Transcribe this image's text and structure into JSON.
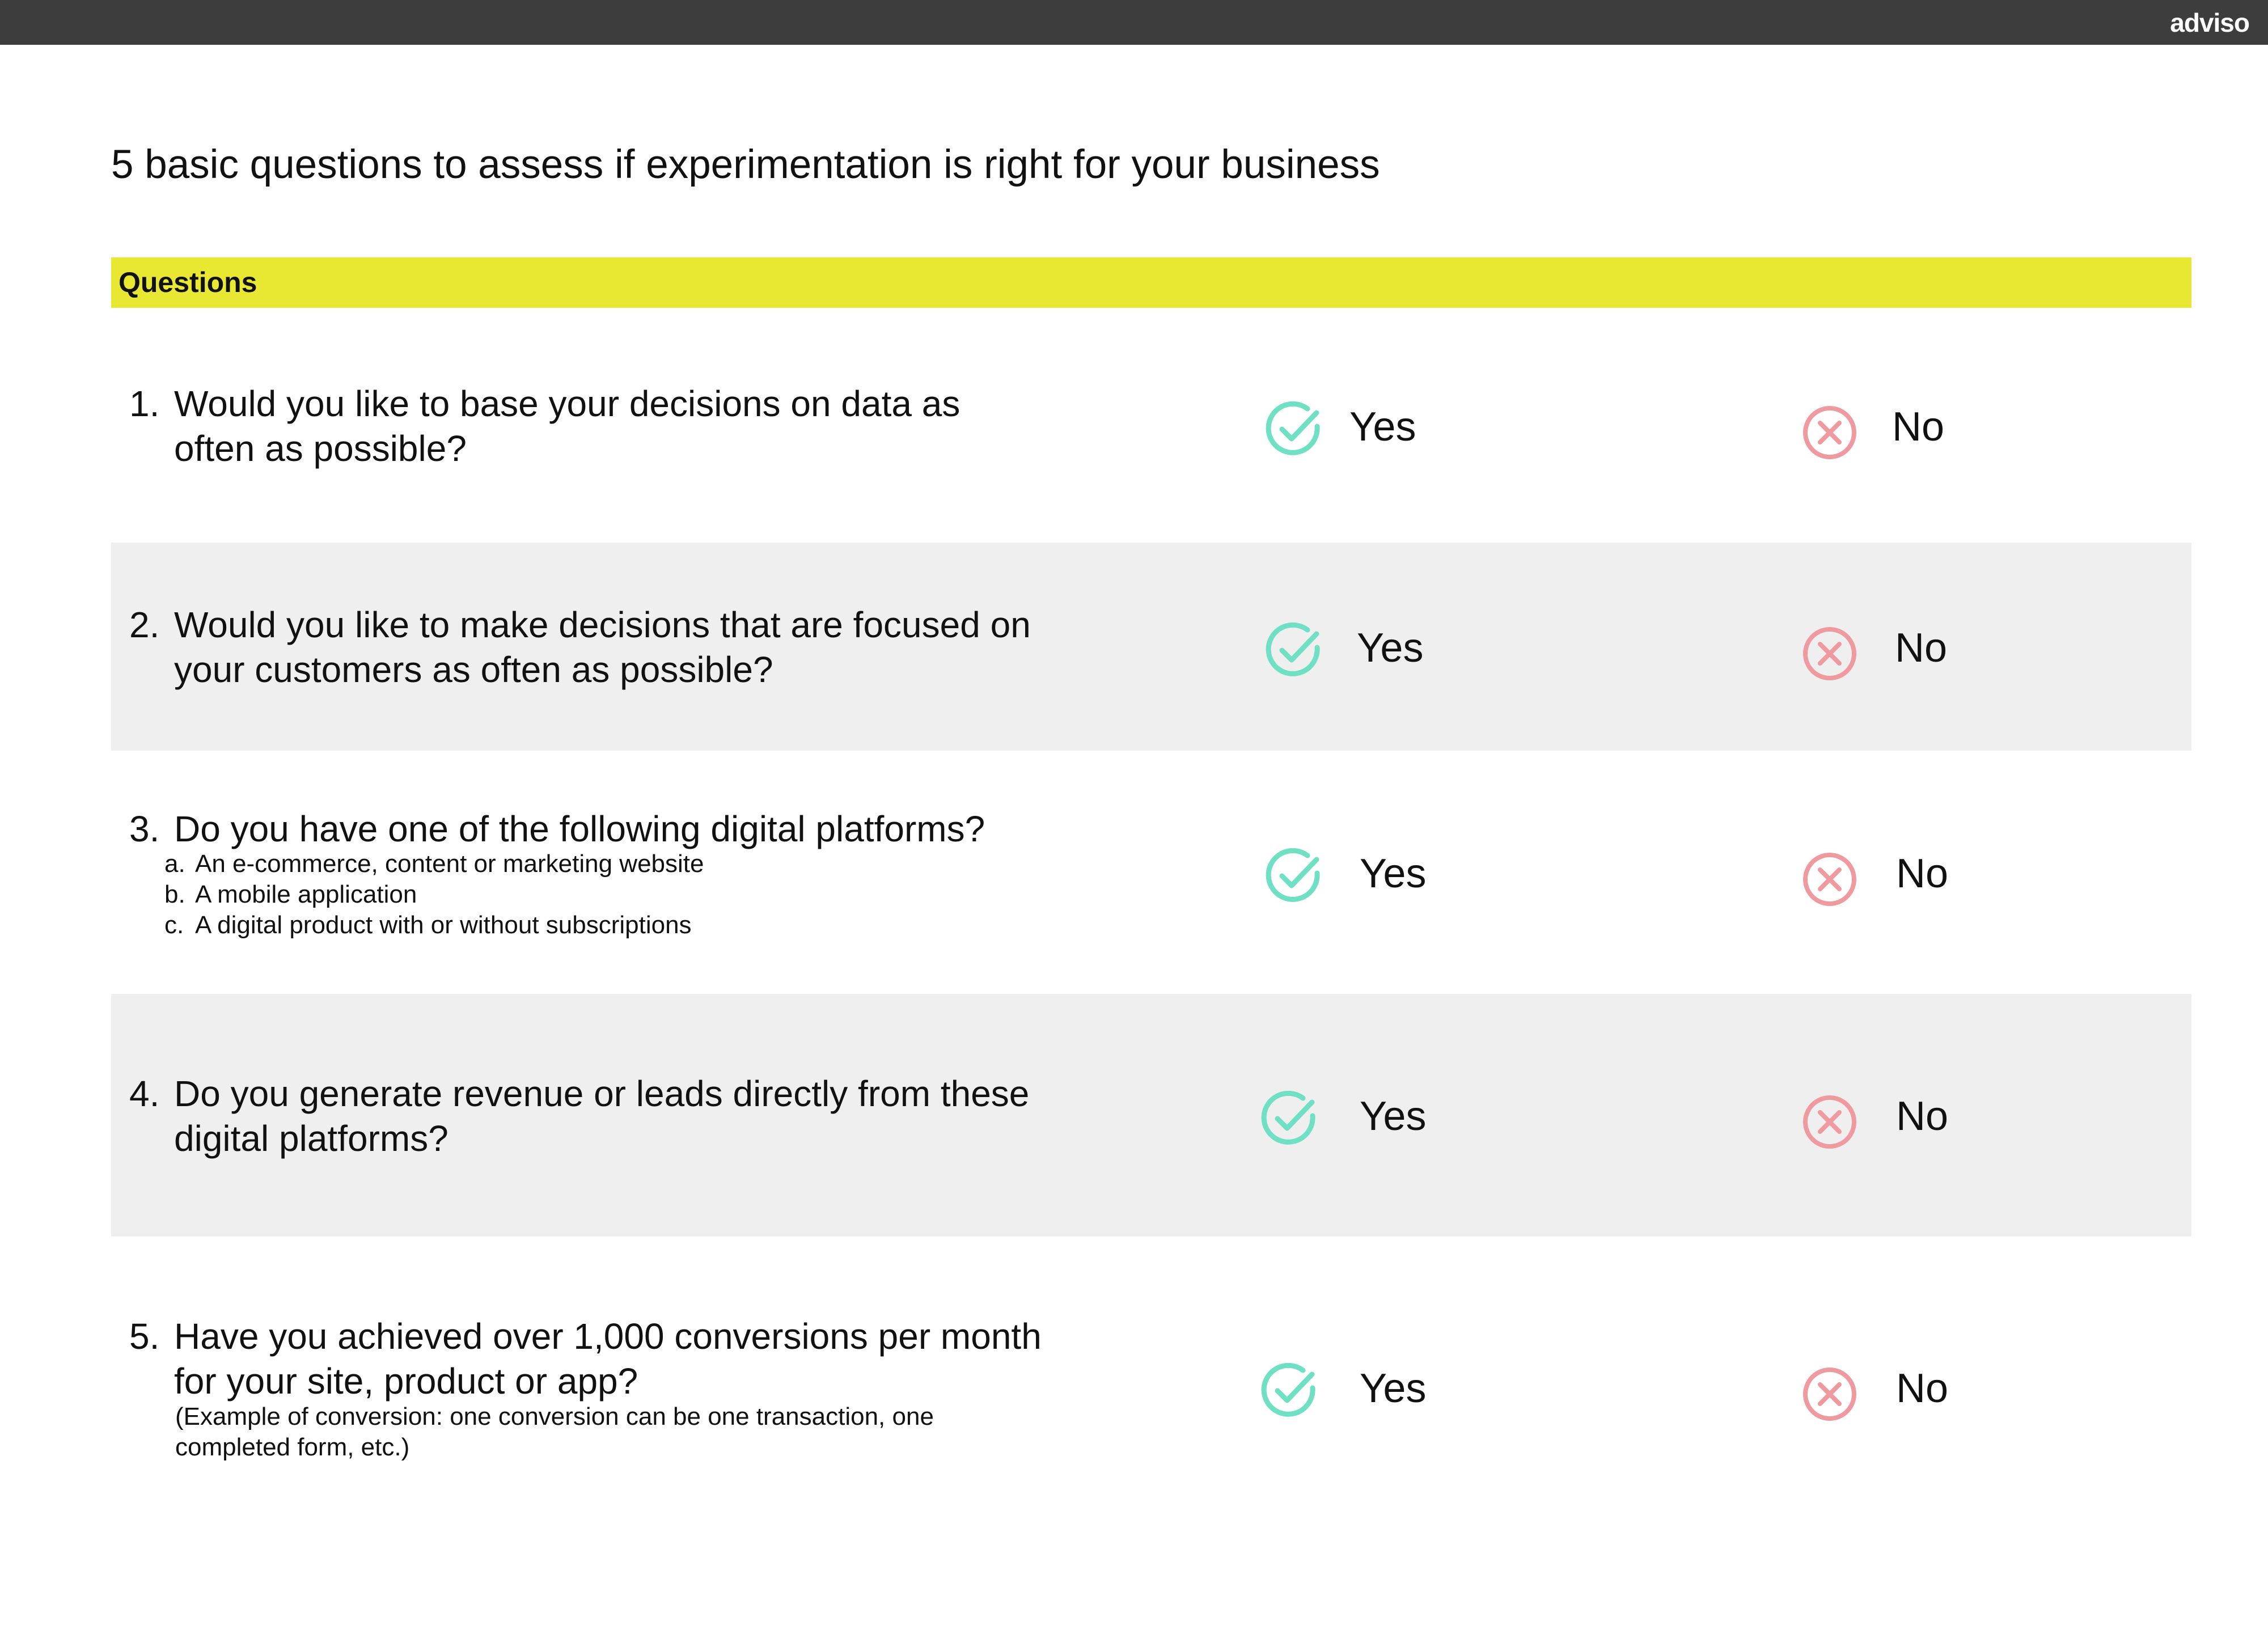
{
  "header": {
    "logo": "adviso"
  },
  "title": "5 basic questions to assess if experimentation is right for your business",
  "table": {
    "header": "Questions",
    "rows": [
      {
        "number": "1.",
        "question_lines": [
          "Would you like to base your decisions on data as",
          "often as possible?"
        ],
        "yes": "Yes",
        "no": "No"
      },
      {
        "number": "2.",
        "question_lines": [
          "Would you like to make decisions that are focused on",
          "your customers as often as possible?"
        ],
        "yes": "Yes",
        "no": "No"
      },
      {
        "number": "3.",
        "question_lines": [
          "Do you have one of the following digital platforms?"
        ],
        "sub_items": [
          {
            "marker": "a.",
            "text": "An e-commerce, content or marketing website"
          },
          {
            "marker": "b.",
            "text": "A mobile application"
          },
          {
            "marker": "c.",
            "text": "A digital product with or without subscriptions"
          }
        ],
        "yes": "Yes",
        "no": "No"
      },
      {
        "number": "4.",
        "question_lines": [
          "Do you generate revenue or leads directly from these",
          "digital platforms?"
        ],
        "yes": "Yes",
        "no": "No"
      },
      {
        "number": "5.",
        "question_lines": [
          "Have you achieved over 1,000 conversions per month",
          "for your site, product or app?"
        ],
        "note_lines": [
          "(Example of conversion: one conversion can be one transaction, one",
          "completed form,  etc.)"
        ],
        "yes": "Yes",
        "no": "No"
      }
    ]
  }
}
